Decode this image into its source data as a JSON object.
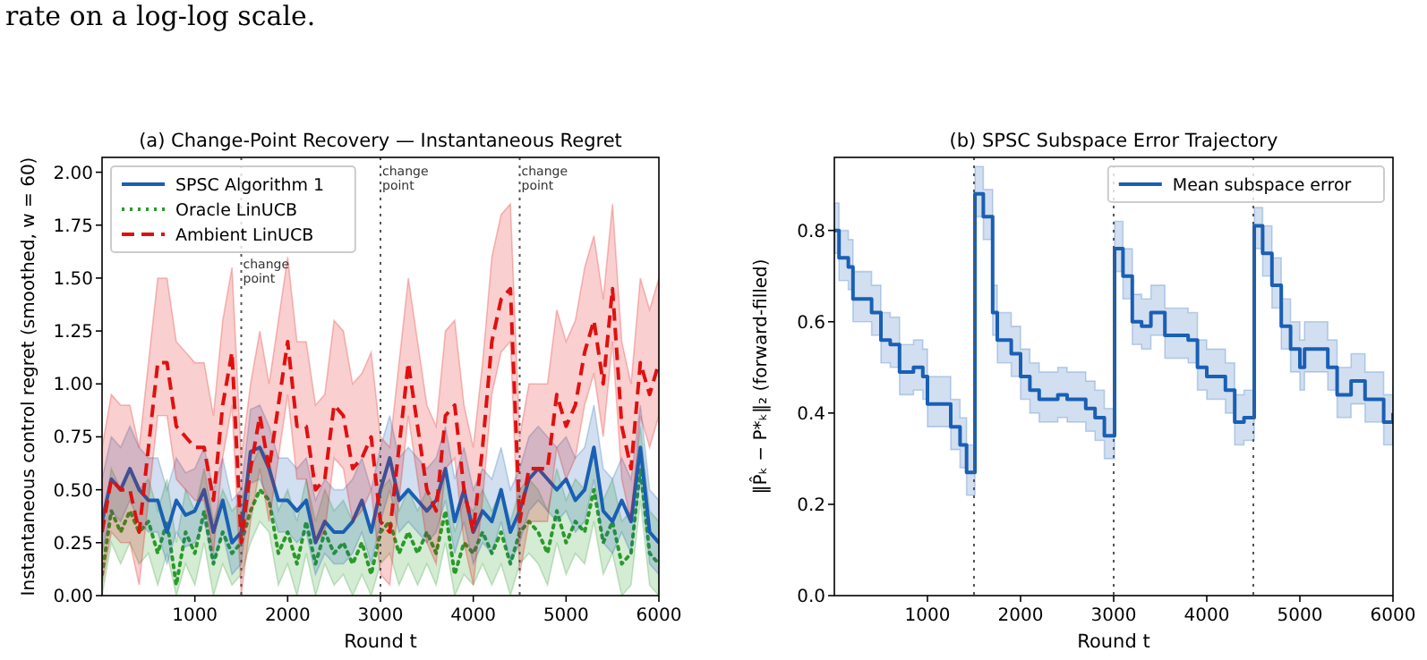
{
  "chart_data": [
    {
      "type": "line",
      "title": "(a) Change-Point Recovery — Instantaneous Regret",
      "xlabel": "Round t",
      "ylabel": "Instantaneous control regret (smoothed, w = 60)",
      "annotations": [
        "rate on a log-log scale."
      ],
      "x": [
        0,
        100,
        200,
        300,
        400,
        500,
        600,
        700,
        800,
        900,
        1000,
        1100,
        1200,
        1300,
        1400,
        1500,
        1600,
        1700,
        1800,
        1900,
        2000,
        2100,
        2200,
        2300,
        2400,
        2500,
        2600,
        2700,
        2800,
        2900,
        3000,
        3100,
        3200,
        3300,
        3400,
        3500,
        3600,
        3700,
        3800,
        3900,
        4000,
        4100,
        4200,
        4300,
        4400,
        4500,
        4600,
        4700,
        4800,
        4900,
        5000,
        5100,
        5200,
        5300,
        5400,
        5500,
        5600,
        5700,
        5800,
        5900,
        6000
      ],
      "xlim": [
        0,
        6000
      ],
      "xticks": [
        1000,
        2000,
        3000,
        4000,
        5000,
        6000
      ],
      "ylim": [
        0,
        2.07
      ],
      "yticks": [
        {
          "value": 0,
          "label": "0.00"
        },
        {
          "value": 0.25,
          "label": "0.25"
        },
        {
          "value": 0.5,
          "label": "0.50"
        },
        {
          "value": 0.75,
          "label": "0.75"
        },
        {
          "value": 1,
          "label": "1.00"
        },
        {
          "value": 1.25,
          "label": "1.25"
        },
        {
          "value": 1.5,
          "label": "1.50"
        },
        {
          "value": 1.75,
          "label": "1.75"
        },
        {
          "value": 2,
          "label": "2.00"
        }
      ],
      "grid": false,
      "legend": "top left",
      "marker": "none",
      "ref_lines": [
        {
          "axis": "x",
          "value": 1500,
          "label": "change\npoint",
          "color": "#555555",
          "line_style": "dotted"
        },
        {
          "axis": "x",
          "value": 3000,
          "label": "change\npoint",
          "color": "#555555",
          "line_style": "dotted"
        },
        {
          "axis": "x",
          "value": 4500,
          "label": "change\npoint",
          "color": "#555555",
          "line_style": "dotted"
        }
      ],
      "series": [
        {
          "name": "Oracle LinUCB",
          "color": "#2a9a2a",
          "line_style": "dotted",
          "values": [
            0.1,
            0.4,
            0.3,
            0.4,
            0.3,
            0.35,
            0.2,
            0.35,
            0.05,
            0.3,
            0.2,
            0.4,
            0.15,
            0.3,
            0.2,
            0.25,
            0.4,
            0.5,
            0.45,
            0.2,
            0.3,
            0.15,
            0.35,
            0.15,
            0.3,
            0.2,
            0.25,
            0.15,
            0.25,
            0.1,
            0.3,
            0.35,
            0.2,
            0.3,
            0.2,
            0.3,
            0.2,
            0.4,
            0.1,
            0.25,
            0.2,
            0.3,
            0.2,
            0.3,
            0.15,
            0.3,
            0.35,
            0.3,
            0.2,
            0.4,
            0.25,
            0.35,
            0.3,
            0.5,
            0.25,
            0.35,
            0.15,
            0.2,
            0.6,
            0.2,
            0.15
          ],
          "lower": [
            0,
            0.25,
            0.15,
            0.25,
            0.15,
            0.2,
            0.05,
            0.2,
            0,
            0.15,
            0.05,
            0.25,
            0,
            0.15,
            0.05,
            0.1,
            0.25,
            0.35,
            0.3,
            0.05,
            0.15,
            0,
            0.2,
            0,
            0.15,
            0.05,
            0.1,
            0,
            0.1,
            0,
            0.15,
            0.2,
            0.05,
            0.15,
            0.05,
            0.15,
            0.05,
            0.25,
            0,
            0.1,
            0.05,
            0.15,
            0.05,
            0.15,
            0,
            0.15,
            0.2,
            0.15,
            0.05,
            0.25,
            0.1,
            0.2,
            0.15,
            0.35,
            0.1,
            0.2,
            0,
            0.05,
            0.45,
            0.05,
            0
          ],
          "upper": [
            0.3,
            0.6,
            0.5,
            0.6,
            0.5,
            0.55,
            0.4,
            0.55,
            0.25,
            0.5,
            0.4,
            0.6,
            0.35,
            0.5,
            0.4,
            0.45,
            0.6,
            0.7,
            0.65,
            0.4,
            0.5,
            0.35,
            0.55,
            0.35,
            0.5,
            0.4,
            0.45,
            0.35,
            0.45,
            0.3,
            0.5,
            0.55,
            0.4,
            0.5,
            0.4,
            0.5,
            0.4,
            0.6,
            0.3,
            0.45,
            0.4,
            0.5,
            0.4,
            0.5,
            0.35,
            0.5,
            0.55,
            0.5,
            0.4,
            0.6,
            0.45,
            0.55,
            0.5,
            0.7,
            0.45,
            0.55,
            0.35,
            0.4,
            0.8,
            0.4,
            0.35
          ]
        },
        {
          "name": "SPSC Algorithm 1",
          "color": "#1a5fb4",
          "line_style": "solid",
          "values": [
            0.35,
            0.55,
            0.5,
            0.6,
            0.5,
            0.45,
            0.45,
            0.3,
            0.45,
            0.38,
            0.4,
            0.5,
            0.3,
            0.45,
            0.25,
            0.3,
            0.68,
            0.7,
            0.6,
            0.45,
            0.45,
            0.4,
            0.45,
            0.25,
            0.35,
            0.3,
            0.3,
            0.35,
            0.45,
            0.3,
            0.5,
            0.65,
            0.45,
            0.5,
            0.45,
            0.4,
            0.45,
            0.6,
            0.35,
            0.5,
            0.3,
            0.4,
            0.35,
            0.5,
            0.3,
            0.4,
            0.55,
            0.6,
            0.55,
            0.5,
            0.55,
            0.45,
            0.5,
            0.7,
            0.4,
            0.35,
            0.45,
            0.35,
            0.7,
            0.3,
            0.25
          ],
          "lower": [
            0.2,
            0.4,
            0.35,
            0.45,
            0.35,
            0.3,
            0.3,
            0.15,
            0.3,
            0.23,
            0.25,
            0.35,
            0.15,
            0.3,
            0.1,
            0.15,
            0.53,
            0.55,
            0.45,
            0.3,
            0.3,
            0.25,
            0.3,
            0.1,
            0.2,
            0.15,
            0.15,
            0.2,
            0.3,
            0.15,
            0.35,
            0.5,
            0.3,
            0.35,
            0.3,
            0.25,
            0.3,
            0.45,
            0.2,
            0.35,
            0.15,
            0.25,
            0.2,
            0.35,
            0.15,
            0.25,
            0.4,
            0.45,
            0.4,
            0.35,
            0.4,
            0.3,
            0.35,
            0.55,
            0.25,
            0.2,
            0.3,
            0.2,
            0.55,
            0.15,
            0.1
          ],
          "upper": [
            0.55,
            0.75,
            0.7,
            0.8,
            0.7,
            0.65,
            0.65,
            0.5,
            0.65,
            0.58,
            0.6,
            0.7,
            0.5,
            0.65,
            0.45,
            0.5,
            0.88,
            0.9,
            0.8,
            0.65,
            0.65,
            0.6,
            0.65,
            0.45,
            0.55,
            0.5,
            0.5,
            0.55,
            0.65,
            0.5,
            0.7,
            0.85,
            0.65,
            0.7,
            0.65,
            0.6,
            0.65,
            0.8,
            0.55,
            0.7,
            0.5,
            0.6,
            0.55,
            0.7,
            0.5,
            0.6,
            0.75,
            0.8,
            0.75,
            0.7,
            0.75,
            0.65,
            0.7,
            0.9,
            0.6,
            0.55,
            0.65,
            0.55,
            0.9,
            0.5,
            0.45
          ]
        },
        {
          "name": "Ambient LinUCB",
          "color": "#e01010",
          "line_style": "dashed",
          "values": [
            0.3,
            0.55,
            0.5,
            0.5,
            0.3,
            0.7,
            1.1,
            1.1,
            0.8,
            0.75,
            0.7,
            0.7,
            0.45,
            0.9,
            1.15,
            0.25,
            0.6,
            0.85,
            0.6,
            0.9,
            1.2,
            0.8,
            0.8,
            0.5,
            0.55,
            0.9,
            0.85,
            0.6,
            0.65,
            0.75,
            0.35,
            0.3,
            0.7,
            1.1,
            0.8,
            0.5,
            0.4,
            0.85,
            0.9,
            0.5,
            0.3,
            0.7,
            1.2,
            1.4,
            1.45,
            0.35,
            0.6,
            0.6,
            0.6,
            0.95,
            0.8,
            0.9,
            1.15,
            1.3,
            1.0,
            1.45,
            0.8,
            0.6,
            1.1,
            0.95,
            1.1
          ],
          "lower": [
            0.05,
            0.3,
            0.25,
            0.25,
            0.05,
            0.45,
            0.85,
            0.85,
            0.55,
            0.5,
            0.45,
            0.45,
            0.2,
            0.65,
            0.9,
            0,
            0.35,
            0.6,
            0.35,
            0.65,
            0.95,
            0.55,
            0.55,
            0.25,
            0.3,
            0.65,
            0.6,
            0.35,
            0.4,
            0.5,
            0.1,
            0.05,
            0.45,
            0.85,
            0.55,
            0.25,
            0.15,
            0.6,
            0.65,
            0.25,
            0.05,
            0.45,
            0.95,
            1.15,
            1.2,
            0.1,
            0.35,
            0.35,
            0.35,
            0.7,
            0.55,
            0.65,
            0.9,
            1.05,
            0.75,
            1.2,
            0.55,
            0.35,
            0.85,
            0.7,
            0.85
          ],
          "upper": [
            0.7,
            0.95,
            0.9,
            0.9,
            0.7,
            1.1,
            1.5,
            1.5,
            1.2,
            1.15,
            1.1,
            1.1,
            0.85,
            1.3,
            1.55,
            0.65,
            1.0,
            1.25,
            1.0,
            1.3,
            1.6,
            1.2,
            1.2,
            0.9,
            0.95,
            1.3,
            1.25,
            1.0,
            1.05,
            1.15,
            0.75,
            0.7,
            1.1,
            1.5,
            1.2,
            0.9,
            0.8,
            1.25,
            1.3,
            0.9,
            0.7,
            1.1,
            1.6,
            1.8,
            1.85,
            0.75,
            1.0,
            1.0,
            1.0,
            1.35,
            1.2,
            1.3,
            1.55,
            1.7,
            1.4,
            1.85,
            1.2,
            1.0,
            1.5,
            1.35,
            1.5
          ]
        }
      ]
    },
    {
      "type": "step",
      "title": "(b) SPSC Subspace Error Trajectory",
      "xlabel": "Round t",
      "ylabel": "‖P̂ₖ − P*ₖ‖₂ (forward-filled)",
      "xlim": [
        0,
        6000
      ],
      "xticks": [
        1000,
        2000,
        3000,
        4000,
        5000,
        6000
      ],
      "ylim": [
        0,
        0.96
      ],
      "yticks": [
        {
          "value": 0,
          "label": "0.0"
        },
        {
          "value": 0.2,
          "label": "0.2"
        },
        {
          "value": 0.4,
          "label": "0.4"
        },
        {
          "value": 0.6,
          "label": "0.6"
        },
        {
          "value": 0.8,
          "label": "0.8"
        }
      ],
      "grid": false,
      "legend": "top right",
      "marker": "none",
      "ref_lines": [
        {
          "axis": "x",
          "value": 1500,
          "color": "#555555",
          "line_style": "dotted"
        },
        {
          "axis": "x",
          "value": 3000,
          "color": "#555555",
          "line_style": "dotted"
        },
        {
          "axis": "x",
          "value": 4500,
          "color": "#555555",
          "line_style": "dotted"
        }
      ],
      "series": [
        {
          "name": "Mean subspace error",
          "color": "#1a5fb4",
          "line_style": "solid",
          "x": [
            0,
            50,
            150,
            200,
            350,
            400,
            500,
            600,
            700,
            850,
            950,
            1000,
            1200,
            1250,
            1350,
            1420,
            1510,
            1600,
            1700,
            1750,
            1900,
            2000,
            2100,
            2200,
            2400,
            2500,
            2700,
            2800,
            2900,
            3010,
            3100,
            3200,
            3300,
            3400,
            3550,
            3800,
            3900,
            4000,
            4200,
            4300,
            4400,
            4510,
            4600,
            4700,
            4800,
            4900,
            5000,
            5050,
            5300,
            5400,
            5550,
            5700,
            5900,
            6000
          ],
          "values": [
            0.8,
            0.74,
            0.72,
            0.65,
            0.65,
            0.62,
            0.56,
            0.55,
            0.49,
            0.5,
            0.48,
            0.42,
            0.42,
            0.37,
            0.33,
            0.27,
            0.88,
            0.83,
            0.62,
            0.56,
            0.53,
            0.48,
            0.45,
            0.43,
            0.44,
            0.43,
            0.41,
            0.39,
            0.35,
            0.76,
            0.7,
            0.6,
            0.59,
            0.62,
            0.57,
            0.56,
            0.5,
            0.48,
            0.45,
            0.38,
            0.39,
            0.81,
            0.75,
            0.68,
            0.59,
            0.54,
            0.5,
            0.54,
            0.5,
            0.44,
            0.47,
            0.43,
            0.38,
            0.4
          ],
          "lower": [
            0.75,
            0.69,
            0.67,
            0.6,
            0.6,
            0.57,
            0.51,
            0.5,
            0.44,
            0.45,
            0.43,
            0.37,
            0.37,
            0.32,
            0.28,
            0.22,
            0.83,
            0.78,
            0.57,
            0.51,
            0.48,
            0.43,
            0.4,
            0.38,
            0.39,
            0.38,
            0.36,
            0.34,
            0.3,
            0.71,
            0.65,
            0.55,
            0.54,
            0.57,
            0.52,
            0.51,
            0.45,
            0.43,
            0.4,
            0.33,
            0.34,
            0.76,
            0.7,
            0.63,
            0.54,
            0.49,
            0.45,
            0.49,
            0.45,
            0.39,
            0.42,
            0.38,
            0.33,
            0.35
          ],
          "upper": [
            0.86,
            0.8,
            0.78,
            0.71,
            0.71,
            0.68,
            0.62,
            0.61,
            0.55,
            0.56,
            0.54,
            0.48,
            0.48,
            0.43,
            0.39,
            0.33,
            0.94,
            0.89,
            0.68,
            0.62,
            0.59,
            0.54,
            0.51,
            0.49,
            0.5,
            0.49,
            0.47,
            0.45,
            0.41,
            0.82,
            0.76,
            0.66,
            0.65,
            0.68,
            0.63,
            0.62,
            0.56,
            0.54,
            0.51,
            0.44,
            0.45,
            0.85,
            0.81,
            0.74,
            0.65,
            0.6,
            0.56,
            0.6,
            0.56,
            0.5,
            0.53,
            0.49,
            0.44,
            0.46
          ]
        }
      ]
    }
  ]
}
